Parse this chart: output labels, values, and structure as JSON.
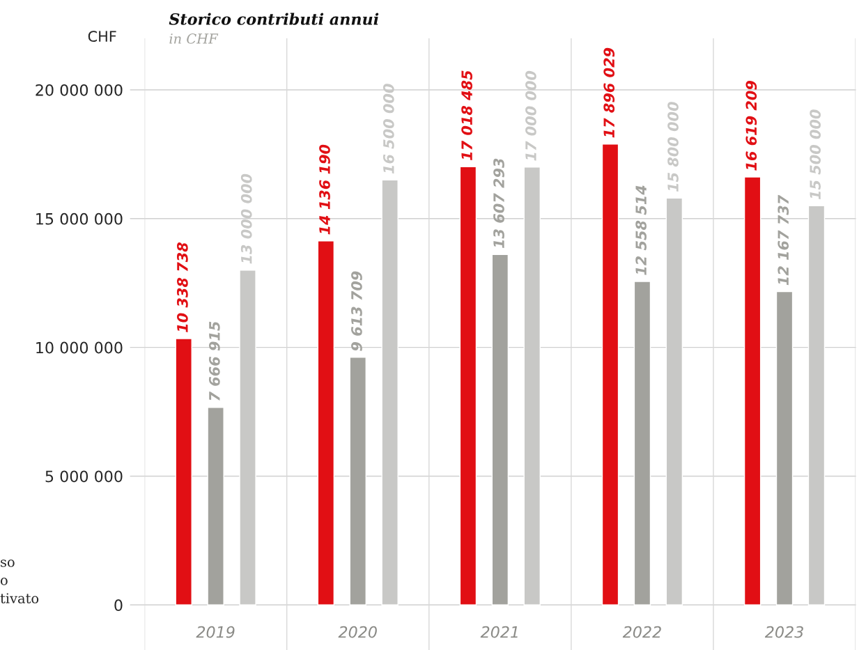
{
  "chart_data": {
    "type": "bar",
    "title": "Storico contributi annui",
    "subtitle": "in CHF",
    "ylabel": "CHF",
    "categories": [
      "2019",
      "2020",
      "2021",
      "2022",
      "2023"
    ],
    "series": [
      {
        "color": "#e10f14",
        "values": [
          10338738,
          14136190,
          17018485,
          17896029,
          16619209
        ]
      },
      {
        "color": "#a2a29d",
        "values": [
          7666915,
          9613709,
          13607293,
          12558514,
          12167737
        ]
      },
      {
        "color": "#c8c8c6",
        "values": [
          13000000,
          16500000,
          17000000,
          15800000,
          15500000
        ]
      }
    ],
    "ylim": [
      -1750000,
      22000000
    ],
    "yticks": [
      {
        "value": 0,
        "label": "0"
      },
      {
        "value": 5000000,
        "label": "5 000 000"
      },
      {
        "value": 10000000,
        "label": "10 000 000"
      },
      {
        "value": 15000000,
        "label": "15 000 000"
      },
      {
        "value": 20000000,
        "label": "20 000 000"
      }
    ],
    "grid": true,
    "data_labels": true,
    "annotations": [
      "so",
      "o",
      "tivato"
    ]
  }
}
